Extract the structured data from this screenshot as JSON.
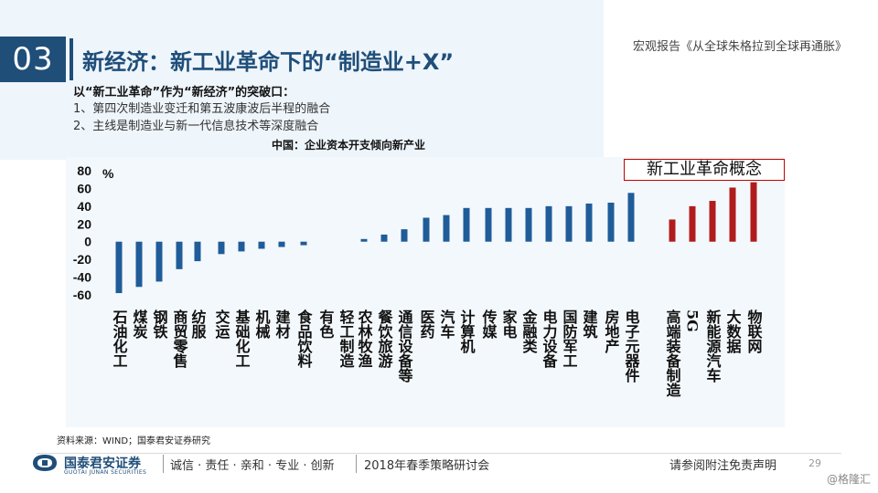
{
  "header": {
    "section_number": "03",
    "title": "新经济：新工业革命下的“制造业+X”",
    "report_name": "宏观报告《从全球朱格拉到全球再通胀》"
  },
  "bullets": {
    "head": "以“新工业革命”作为“新经济”的突破口：",
    "items": [
      "1、第四次制造业变迁和第五波康波后半程的融合",
      "2、主线是制造业与新一代信息技术等深度融合"
    ]
  },
  "concept_label": "新工业革命概念",
  "chart_data": {
    "type": "bar",
    "title": "中国：企业资本开支倾向新产业",
    "ylabel": "%",
    "ylim": [
      -60,
      80
    ],
    "yticks": [
      80,
      60,
      40,
      20,
      0,
      -20,
      -40,
      -60
    ],
    "categories": [
      "石油化工",
      "煤炭",
      "钢铁",
      "商贸零售",
      "纺服",
      "交运",
      "基础化工",
      "机械",
      "建材",
      "食品饮料",
      "有色",
      "轻工制造",
      "农林牧渔",
      "餐饮旅游",
      "通信设备等",
      "医药",
      "汽车",
      "计算机",
      "传媒",
      "家电",
      "金融类",
      "电力设备",
      "国防军工",
      "建筑",
      "房地产",
      "电子元器件",
      "高端装备制造",
      "5G",
      "新能源汽车",
      "大数据",
      "物联网"
    ],
    "values": [
      -58,
      -51,
      -45,
      -31,
      -22,
      -14,
      -11,
      -8,
      -6,
      -4,
      0,
      0,
      3,
      8,
      14,
      27,
      30,
      38,
      38,
      38,
      38,
      40,
      40,
      43,
      44,
      55,
      25,
      40,
      46,
      61,
      67
    ],
    "colors": {
      "traditional": "#1f5c99",
      "new_industry": "#b01c1c"
    },
    "new_industry_categories": [
      "高端装备制造",
      "5G",
      "新能源汽车",
      "大数据",
      "物联网"
    ]
  },
  "source": "资料来源：WIND；国泰君安证券研究",
  "footer": {
    "company": "国泰君安证券",
    "company_en": "GUOTAI JUNAN SECURITIES",
    "slogan": "诚信 · 责任 · 亲和 · 专业 · 创新",
    "conference": "2018年春季策略研讨会",
    "disclaimer": "请参阅附注免责声明",
    "page_number": "29",
    "watermark": "@格隆汇"
  }
}
